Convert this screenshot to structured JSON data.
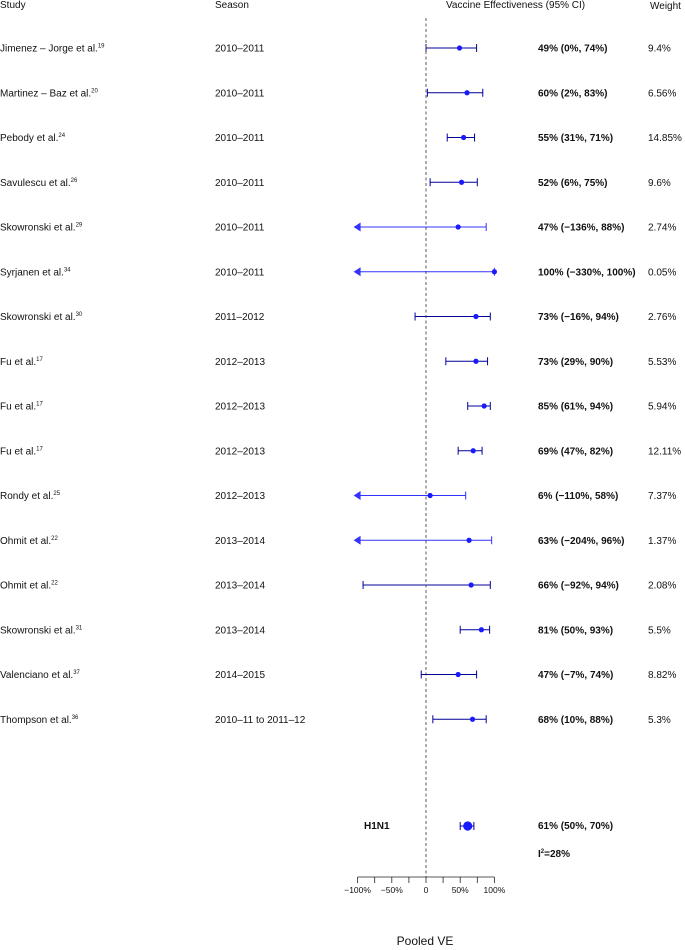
{
  "chart_data": {
    "type": "forest",
    "headers": {
      "study": "Study",
      "season": "Season",
      "ve": "Vaccine Effectiveness (95% CI)",
      "weight": "Weight"
    },
    "rows": [
      {
        "study": "Jimenez – Jorge et al.",
        "ref": "19",
        "season": "2010–2011",
        "ve": 49,
        "lo": 0,
        "hi": 74,
        "ci_text": "49% (0%, 74%)",
        "weight": "9.4%"
      },
      {
        "study": "Martinez – Baz et al.",
        "ref": "20",
        "season": "2010–2011",
        "ve": 60,
        "lo": 2,
        "hi": 83,
        "ci_text": "60% (2%, 83%)",
        "weight": "6.56%"
      },
      {
        "study": "Pebody et al.",
        "ref": "24",
        "season": "2010–2011",
        "ve": 55,
        "lo": 31,
        "hi": 71,
        "ci_text": "55% (31%, 71%)",
        "weight": "14.85%"
      },
      {
        "study": "Savulescu et al.",
        "ref": "26",
        "season": "2010–2011",
        "ve": 52,
        "lo": 6,
        "hi": 75,
        "ci_text": "52% (6%, 75%)",
        "weight": "9.6%"
      },
      {
        "study": "Skowronski et al.",
        "ref": "29",
        "season": "2010–2011",
        "ve": 47,
        "lo": -136,
        "hi": 88,
        "ci_text": "47% (−136%, 88%)",
        "weight": "2.74%"
      },
      {
        "study": "Syrjanen et al.",
        "ref": "34",
        "season": "2010–2011",
        "ve": 100,
        "lo": -330,
        "hi": 100,
        "ci_text": "100% (−330%, 100%)",
        "weight": "0.05%"
      },
      {
        "study": "Skowronski et al.",
        "ref": "30",
        "season": "2011–2012",
        "ve": 73,
        "lo": -16,
        "hi": 94,
        "ci_text": "73% (−16%, 94%)",
        "weight": "2.76%"
      },
      {
        "study": "Fu et al.",
        "ref": "17",
        "season": "2012–2013",
        "ve": 73,
        "lo": 29,
        "hi": 90,
        "ci_text": "73% (29%, 90%)",
        "weight": "5.53%"
      },
      {
        "study": "Fu et al.",
        "ref": "17",
        "season": "2012–2013",
        "ve": 85,
        "lo": 61,
        "hi": 94,
        "ci_text": "85% (61%, 94%)",
        "weight": "5.94%"
      },
      {
        "study": "Fu et al.",
        "ref": "17",
        "season": "2012–2013",
        "ve": 69,
        "lo": 47,
        "hi": 82,
        "ci_text": "69% (47%, 82%)",
        "weight": "12.11%"
      },
      {
        "study": "Rondy et al.",
        "ref": "25",
        "season": "2012–2013",
        "ve": 6,
        "lo": -110,
        "hi": 58,
        "ci_text": "6% (−110%, 58%)",
        "weight": "7.37%"
      },
      {
        "study": "Ohmit et al.",
        "ref": "22",
        "season": "2013–2014",
        "ve": 63,
        "lo": -204,
        "hi": 96,
        "ci_text": "63% (−204%, 96%)",
        "weight": "1.37%"
      },
      {
        "study": "Ohmit et al.",
        "ref": "22",
        "season": "2013–2014",
        "ve": 66,
        "lo": -92,
        "hi": 94,
        "ci_text": "66% (−92%, 94%)",
        "weight": "2.08%"
      },
      {
        "study": "Skowronski et al.",
        "ref": "31",
        "season": "2013–2014",
        "ve": 81,
        "lo": 50,
        "hi": 93,
        "ci_text": "81% (50%, 93%)",
        "weight": "5.5%"
      },
      {
        "study": "Valenciano et al.",
        "ref": "37",
        "season": "2014–2015",
        "ve": 47,
        "lo": -7,
        "hi": 74,
        "ci_text": "47% (−7%, 74%)",
        "weight": "8.82%"
      },
      {
        "study": "Thompson et al.",
        "ref": "36",
        "season": "2010–11 to 2011–12",
        "ve": 68,
        "lo": 10,
        "hi": 88,
        "ci_text": "68% (10%, 88%)",
        "weight": "5.3%"
      }
    ],
    "pooled": {
      "label": "H1N1",
      "ve": 61,
      "lo": 50,
      "hi": 70,
      "ci_text": "61% (50%, 70%)",
      "heterogeneity": "=28%",
      "heterogeneity_symbol": "I",
      "heterogeneity_sup": "2"
    },
    "x_axis": {
      "title": "Pooled VE",
      "range": [
        -100,
        100
      ],
      "ticks": [
        -100,
        -50,
        0,
        50,
        100
      ],
      "tick_labels": [
        "−100%",
        "−50%",
        "0",
        "50%",
        "100%"
      ],
      "reference_line": 0
    },
    "colors": {
      "marker": "#1a1aff",
      "ci_dark": "#000099",
      "ci_light": "#3333ff"
    }
  }
}
